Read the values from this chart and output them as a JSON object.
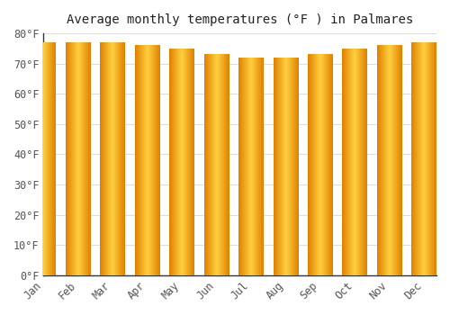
{
  "title": "Average monthly temperatures (°F ) in Palmares",
  "months": [
    "Jan",
    "Feb",
    "Mar",
    "Apr",
    "May",
    "Jun",
    "Jul",
    "Aug",
    "Sep",
    "Oct",
    "Nov",
    "Dec"
  ],
  "values": [
    77,
    77,
    77,
    76,
    75,
    73,
    72,
    72,
    73,
    75,
    76,
    77
  ],
  "bar_color_left": "#E08000",
  "bar_color_center": "#FFD040",
  "bar_color_right": "#E08000",
  "background_color": "#ffffff",
  "plot_bg_color": "#ffffff",
  "grid_color": "#dddddd",
  "spine_color": "#333333",
  "text_color": "#555555",
  "ylim": [
    0,
    80
  ],
  "yticks": [
    0,
    10,
    20,
    30,
    40,
    50,
    60,
    70,
    80
  ],
  "title_fontsize": 10,
  "tick_fontsize": 8.5,
  "bar_width": 0.72
}
